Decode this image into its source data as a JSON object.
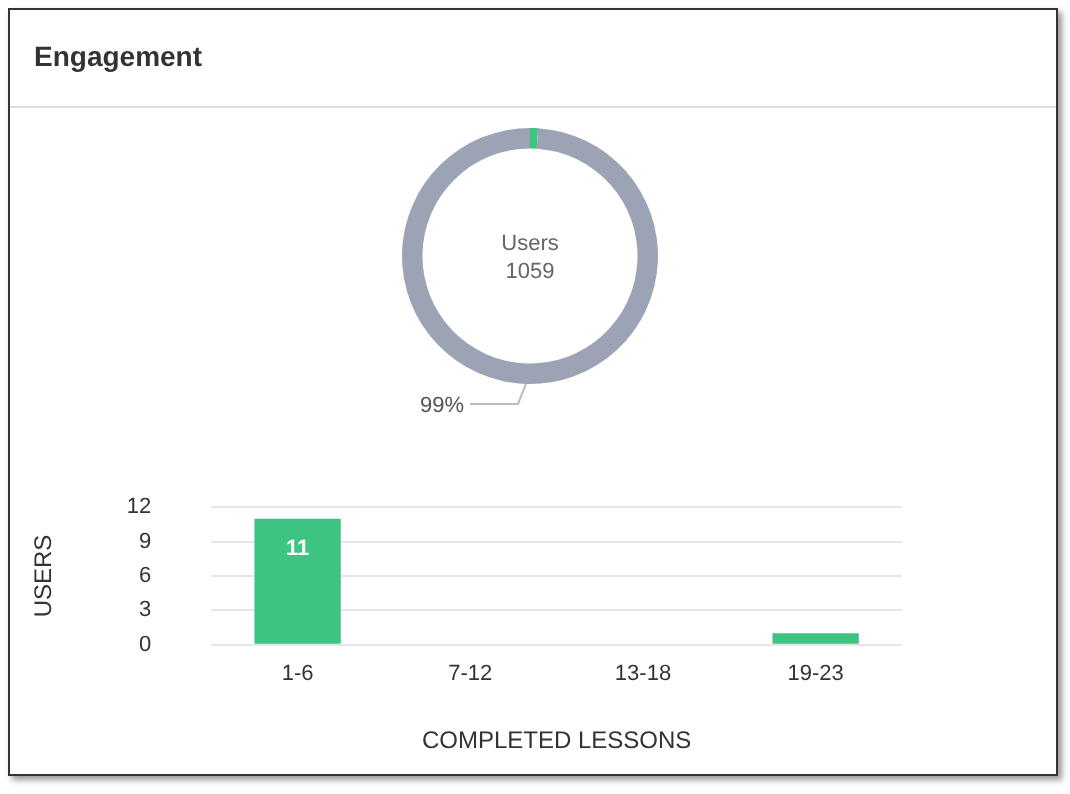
{
  "chart_data": [
    {
      "type": "donut",
      "title": "Engagement",
      "categories": [
        null,
        null
      ],
      "values": [
        1,
        99
      ],
      "colors": [
        "#3ec482",
        "#9ba3b5"
      ],
      "value_labels": [
        null,
        "99%"
      ],
      "annotations": [
        "Users",
        "1059"
      ],
      "legend": false
    },
    {
      "type": "bar",
      "categories": [
        "1-6",
        "7-12",
        "13-18",
        "19-23"
      ],
      "values": [
        11,
        0,
        0,
        1
      ],
      "color": "#3ec482",
      "value_labels": [
        "11",
        null,
        null,
        null
      ],
      "ylim": [
        0,
        12
      ],
      "yticks": [
        0,
        3,
        6,
        9,
        12
      ],
      "grid": "y",
      "xlabel": "COMPLETED LESSONS",
      "ylabel": "USERS",
      "legend": false
    }
  ]
}
